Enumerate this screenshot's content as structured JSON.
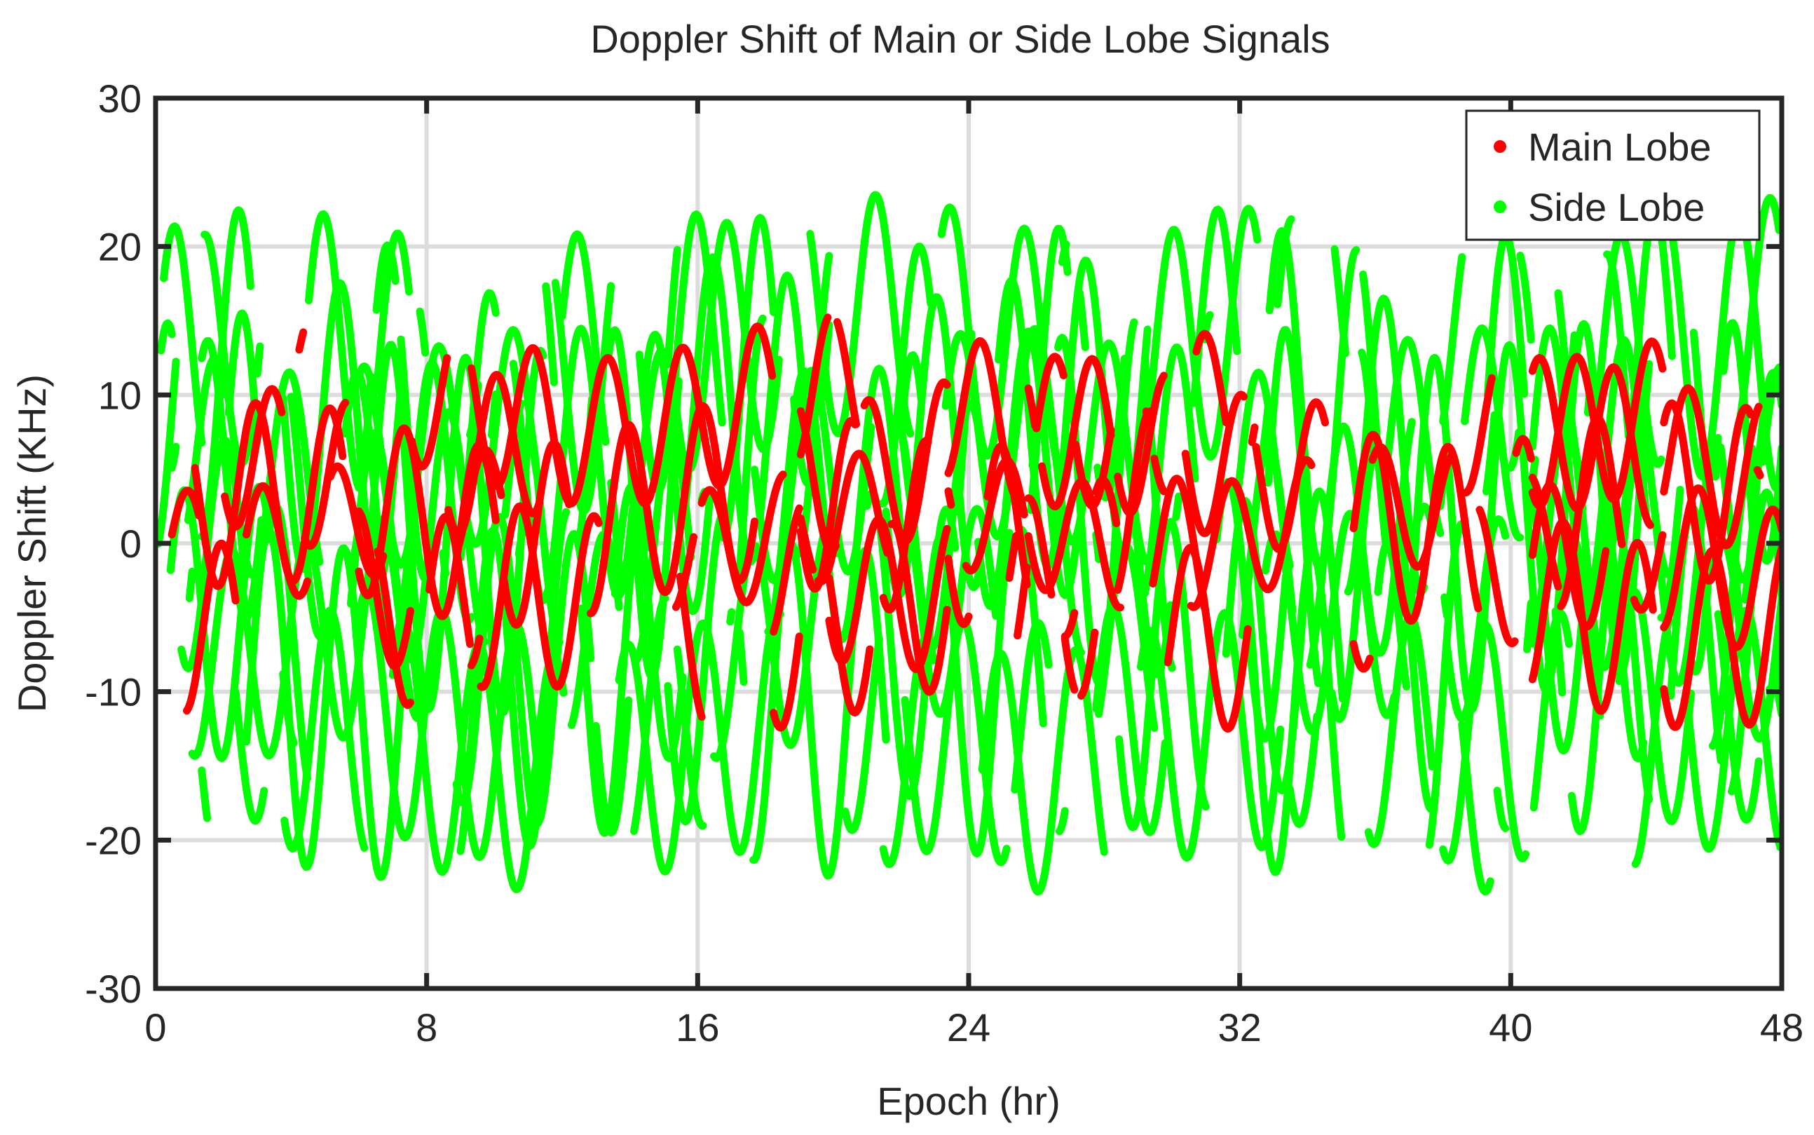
{
  "chart_data": {
    "type": "scatter",
    "title": "Doppler Shift of Main or Side Lobe Signals",
    "xlabel": "Epoch (hr)",
    "ylabel": "Doppler Shift (KHz)",
    "xlim": [
      0,
      48
    ],
    "ylim": [
      -30,
      30
    ],
    "xticks": [
      0,
      8,
      16,
      24,
      32,
      40,
      48
    ],
    "yticks": [
      30,
      20,
      10,
      0,
      -10,
      -20,
      -30
    ],
    "grid": true,
    "legend_position": "top-right",
    "series": [
      {
        "name": "Main Lobe",
        "color": "#ff0000",
        "marker": "dot",
        "period_hr": 2.2,
        "tracks": [
          {
            "center": 2,
            "amplitude": 6,
            "phase_hr": 0.2
          },
          {
            "center": -2,
            "amplitude": 5,
            "phase_hr": 1.0
          },
          {
            "center": 6,
            "amplitude": 5,
            "phase_hr": 0.7
          },
          {
            "center": -5,
            "amplitude": 6,
            "phase_hr": 1.4
          },
          {
            "center": 1,
            "amplitude": 4,
            "phase_hr": 0.4
          },
          {
            "center": 9,
            "amplitude": 5,
            "phase_hr": 1.8
          }
        ]
      },
      {
        "name": "Side Lobe",
        "color": "#00ff00",
        "marker": "dot",
        "period_hr": 2.2,
        "tracks": [
          {
            "center": 12,
            "amplitude": 9,
            "phase_hr": 0.0
          },
          {
            "center": 8,
            "amplitude": 10,
            "phase_hr": 0.5
          },
          {
            "center": 4,
            "amplitude": 9,
            "phase_hr": 1.0
          },
          {
            "center": 0,
            "amplitude": 8,
            "phase_hr": 1.5
          },
          {
            "center": -4,
            "amplitude": 9,
            "phase_hr": 0.3
          },
          {
            "center": -8,
            "amplitude": 10,
            "phase_hr": 0.8
          },
          {
            "center": -12,
            "amplitude": 8,
            "phase_hr": 1.3
          },
          {
            "center": 10,
            "amplitude": 11,
            "phase_hr": 1.9
          },
          {
            "center": -10,
            "amplitude": 11,
            "phase_hr": 0.6
          },
          {
            "center": 6,
            "amplitude": 7,
            "phase_hr": 1.2
          },
          {
            "center": -6,
            "amplitude": 7,
            "phase_hr": 1.7
          },
          {
            "center": 14,
            "amplitude": 8,
            "phase_hr": 0.9
          },
          {
            "center": -14,
            "amplitude": 8,
            "phase_hr": 0.2
          },
          {
            "center": 2,
            "amplitude": 12,
            "phase_hr": 2.0
          }
        ]
      }
    ]
  }
}
